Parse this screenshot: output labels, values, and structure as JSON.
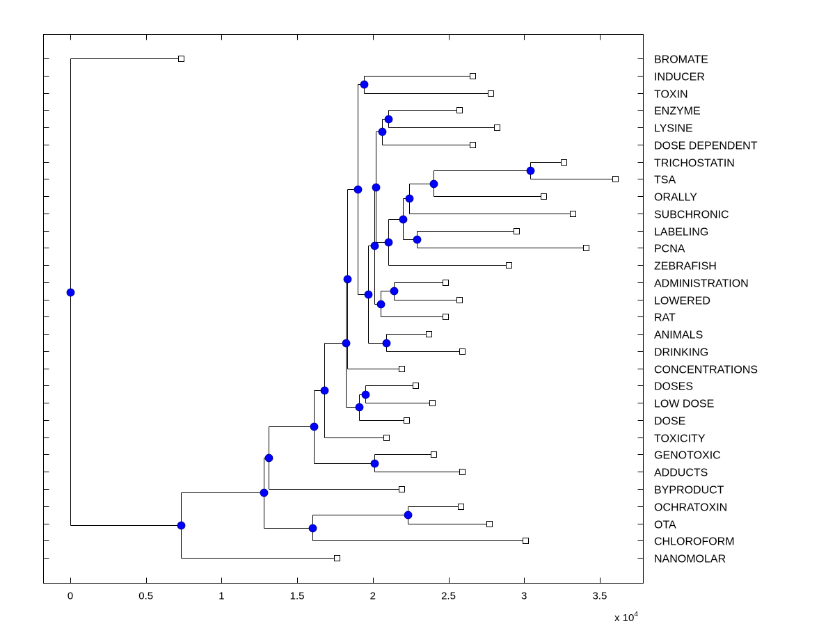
{
  "chart_data": {
    "type": "dendrogram",
    "title": "",
    "xlabel": "",
    "ylabel": "",
    "x_multiplier_label": "x 10",
    "x_multiplier_exponent": "4",
    "xlim": [
      -0.18,
      3.8
    ],
    "x_ticks": [
      0,
      0.5,
      1,
      1.5,
      2,
      2.5,
      3,
      3.5
    ],
    "x_tick_labels": [
      "0",
      "0.5",
      "1",
      "1.5",
      "2",
      "2.5",
      "3",
      "3.5"
    ],
    "x_scale": 10000,
    "orientation": "left-to-right",
    "leaf_label_position": "right",
    "colors": {
      "internal_node": "#0000ff",
      "leaf_marker_fill": "#ffffff",
      "line": "#000000"
    },
    "leaves_order": [
      "BROMATE",
      "INDUCER",
      "TOXIN",
      "ENZYME",
      "LYSINE",
      "DOSE DEPENDENT",
      "TRICHOSTATIN",
      "TSA",
      "ORALLY",
      "SUBCHRONIC",
      "LABELING",
      "PCNA",
      "ZEBRAFISH",
      "ADMINISTRATION",
      "LOWERED",
      "RAT",
      "ANIMALS",
      "DRINKING",
      "CONCENTRATIONS",
      "DOSES",
      "LOW DOSE",
      "DOSE",
      "TOXICITY",
      "GENOTOXIC",
      "ADDUCTS",
      "BYPRODUCT",
      "OCHRATOXIN",
      "OTA",
      "CHLOROFORM",
      "NANOMOLAR"
    ],
    "tree": {
      "x": 0.0,
      "children": [
        {
          "label": "BROMATE",
          "x": 0.73
        },
        {
          "x": 0.73,
          "children": [
            {
              "x": 1.28,
              "children": [
                {
                  "x": 1.31,
                  "children": [
                    {
                      "x": 1.61,
                      "children": [
                        {
                          "x": 1.68,
                          "children": [
                            {
                              "x": 1.82,
                              "children": [
                                {
                                  "x": 1.83,
                                  "children": [
                                    {
                                      "x": 1.9,
                                      "children": [
                                        {
                                          "x": 1.94,
                                          "children": [
                                            {
                                              "label": "INDUCER",
                                              "x": 2.66
                                            },
                                            {
                                              "label": "TOXIN",
                                              "x": 2.78
                                            }
                                          ]
                                        },
                                        {
                                          "x": 1.97,
                                          "children": [
                                            {
                                              "x": 2.01,
                                              "children": [
                                                {
                                                  "x": 2.02,
                                                  "children": [
                                                    {
                                                      "x": 2.06,
                                                      "children": [
                                                        {
                                                          "x": 2.1,
                                                          "children": [
                                                            {
                                                              "label": "ENZYME",
                                                              "x": 2.57
                                                            },
                                                            {
                                                              "label": "LYSINE",
                                                              "x": 2.82
                                                            }
                                                          ]
                                                        },
                                                        {
                                                          "label": "DOSE DEPENDENT",
                                                          "x": 2.66
                                                        }
                                                      ]
                                                    },
                                                    {
                                                      "x": 2.1,
                                                      "children": [
                                                        {
                                                          "x": 2.2,
                                                          "children": [
                                                            {
                                                              "x": 2.24,
                                                              "children": [
                                                                {
                                                                  "x": 2.4,
                                                                  "children": [
                                                                    {
                                                                      "x": 3.04,
                                                                      "children": [
                                                                        {
                                                                          "label": "TRICHOSTATIN",
                                                                          "x": 3.26
                                                                        },
                                                                        {
                                                                          "label": "TSA",
                                                                          "x": 3.6
                                                                        }
                                                                      ]
                                                                    },
                                                                    {
                                                                      "label": "ORALLY",
                                                                      "x": 3.13
                                                                    }
                                                                  ]
                                                                },
                                                                {
                                                                  "label": "SUBCHRONIC",
                                                                  "x": 3.32
                                                                }
                                                              ]
                                                            },
                                                            {
                                                              "x": 2.29,
                                                              "children": [
                                                                {
                                                                  "label": "LABELING",
                                                                  "x": 2.95
                                                                },
                                                                {
                                                                  "label": "PCNA",
                                                                  "x": 3.41
                                                                }
                                                              ]
                                                            }
                                                          ]
                                                        },
                                                        {
                                                          "label": "ZEBRAFISH",
                                                          "x": 2.9
                                                        }
                                                      ]
                                                    }
                                                  ]
                                                },
                                                {
                                                  "x": 2.05,
                                                  "children": [
                                                    {
                                                      "x": 2.14,
                                                      "children": [
                                                        {
                                                          "label": "ADMINISTRATION",
                                                          "x": 2.48
                                                        },
                                                        {
                                                          "label": "LOWERED",
                                                          "x": 2.57
                                                        }
                                                      ]
                                                    },
                                                    {
                                                      "label": "RAT",
                                                      "x": 2.48
                                                    }
                                                  ]
                                                }
                                              ]
                                            },
                                            {
                                              "x": 2.09,
                                              "children": [
                                                {
                                                  "label": "ANIMALS",
                                                  "x": 2.37
                                                },
                                                {
                                                  "label": "DRINKING",
                                                  "x": 2.59
                                                }
                                              ]
                                            }
                                          ]
                                        }
                                      ]
                                    },
                                    {
                                      "label": "CONCENTRATIONS",
                                      "x": 2.19
                                    }
                                  ]
                                },
                                {
                                  "x": 1.91,
                                  "children": [
                                    {
                                      "x": 1.95,
                                      "children": [
                                        {
                                          "label": "DOSES",
                                          "x": 2.28
                                        },
                                        {
                                          "label": "LOW DOSE",
                                          "x": 2.39
                                        }
                                      ]
                                    },
                                    {
                                      "label": "DOSE",
                                      "x": 2.22
                                    }
                                  ]
                                }
                              ]
                            },
                            {
                              "label": "TOXICITY",
                              "x": 2.09
                            }
                          ]
                        },
                        {
                          "x": 2.01,
                          "children": [
                            {
                              "label": "GENOTOXIC",
                              "x": 2.4
                            },
                            {
                              "label": "ADDUCTS",
                              "x": 2.59
                            }
                          ]
                        }
                      ]
                    },
                    {
                      "label": "BYPRODUCT",
                      "x": 2.19
                    }
                  ]
                },
                {
                  "x": 1.6,
                  "children": [
                    {
                      "x": 2.23,
                      "children": [
                        {
                          "label": "OCHRATOXIN",
                          "x": 2.58
                        },
                        {
                          "label": "OTA",
                          "x": 2.77
                        }
                      ]
                    },
                    {
                      "label": "CHLOROFORM",
                      "x": 3.01
                    }
                  ]
                }
              ]
            },
            {
              "label": "NANOMOLAR",
              "x": 1.76
            }
          ]
        }
      ]
    }
  }
}
